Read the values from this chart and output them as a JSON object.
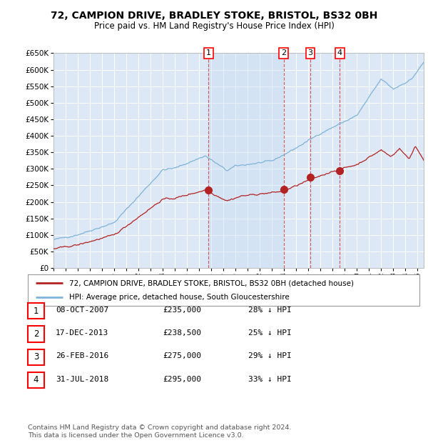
{
  "title1": "72, CAMPION DRIVE, BRADLEY STOKE, BRISTOL, BS32 0BH",
  "title2": "Price paid vs. HM Land Registry's House Price Index (HPI)",
  "background_color": "#ffffff",
  "plot_bg_color": "#dce8f5",
  "grid_color": "#ffffff",
  "hpi_color": "#7fb3d9",
  "price_color": "#b22222",
  "transactions": [
    {
      "num": 1,
      "x": 2007.77,
      "price": 235000,
      "label": "08-OCT-2007",
      "price_str": "£235,000",
      "pct": "28%"
    },
    {
      "num": 2,
      "x": 2013.96,
      "price": 238500,
      "label": "17-DEC-2013",
      "price_str": "£238,500",
      "pct": "25%"
    },
    {
      "num": 3,
      "x": 2016.16,
      "price": 275000,
      "label": "26-FEB-2016",
      "price_str": "£275,000",
      "pct": "29%"
    },
    {
      "num": 4,
      "x": 2018.58,
      "price": 295000,
      "label": "31-JUL-2018",
      "price_str": "£295,000",
      "pct": "33%"
    }
  ],
  "legend_label1": "72, CAMPION DRIVE, BRADLEY STOKE, BRISTOL, BS32 0BH (detached house)",
  "legend_label2": "HPI: Average price, detached house, South Gloucestershire",
  "footer1": "Contains HM Land Registry data © Crown copyright and database right 2024.",
  "footer2": "This data is licensed under the Open Government Licence v3.0.",
  "ylim_max": 650000,
  "ylim_min": 0,
  "xmin": 1995.0,
  "xmax": 2025.5
}
